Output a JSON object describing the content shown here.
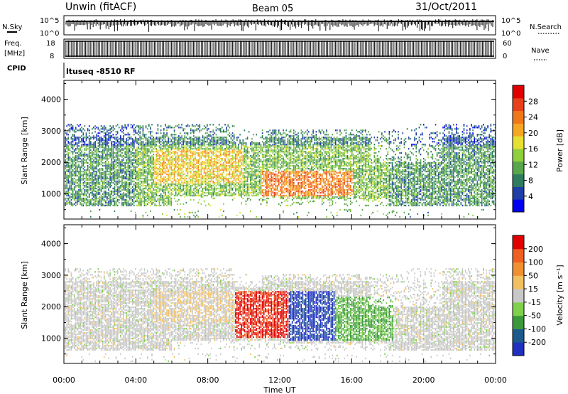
{
  "header": {
    "title": "Unwin (fitACF)",
    "beam": "Beam 05",
    "date": "31/Oct/2011"
  },
  "noise_panel": {
    "left_label": "N.Sky",
    "right_label": "N.Search",
    "left_ticks": [
      "10^5",
      "10^0"
    ],
    "right_ticks": [
      "10^5",
      "10^0"
    ]
  },
  "freq_panel": {
    "left_label_1": "Freq.",
    "left_label_2": "[MHz]",
    "right_label": "Nave",
    "left_ticks": [
      "18",
      "8"
    ],
    "right_ticks": [
      "60",
      "0"
    ]
  },
  "cpid_panel": {
    "label": "CPID",
    "value": "ltuseq -8510 RF"
  },
  "chart_data": [
    {
      "type": "heatmap",
      "name": "power",
      "ylabel": "Slant Range [km]",
      "ylim": [
        200,
        4600
      ],
      "yticks": [
        "1000",
        "2000",
        "3000",
        "4000"
      ],
      "xlim_hours": [
        0,
        24
      ],
      "colorbar_label": "Power [dB]",
      "colorbar_ticks": [
        "28",
        "24",
        "20",
        "16",
        "12",
        "8",
        "4"
      ],
      "colors": [
        "#0000f0",
        "#1e3ea8",
        "#2e7d5e",
        "#5aa64a",
        "#8ecf3c",
        "#e6e033",
        "#f5a623",
        "#f07818",
        "#e8401a",
        "#e00000"
      ]
    },
    {
      "type": "heatmap",
      "name": "velocity",
      "ylabel": "Slant Range [km]",
      "ylim": [
        200,
        4600
      ],
      "yticks": [
        "1000",
        "2000",
        "3000",
        "4000"
      ],
      "xlim_hours": [
        0,
        24
      ],
      "colorbar_label": "Velocity [m s⁻¹]",
      "colorbar_ticks": [
        "200",
        "100",
        "50",
        "15",
        "-15",
        "-50",
        "-100",
        "-200"
      ],
      "colors": [
        "#2030c0",
        "#1c5a8c",
        "#3a9a3a",
        "#7fd04a",
        "#c8c8c8",
        "#f2c060",
        "#f09030",
        "#f06020",
        "#e00000"
      ]
    }
  ],
  "x_axis": {
    "label": "Time UT",
    "ticks": [
      "00:00",
      "04:00",
      "08:00",
      "12:00",
      "16:00",
      "20:00",
      "00:00"
    ]
  }
}
